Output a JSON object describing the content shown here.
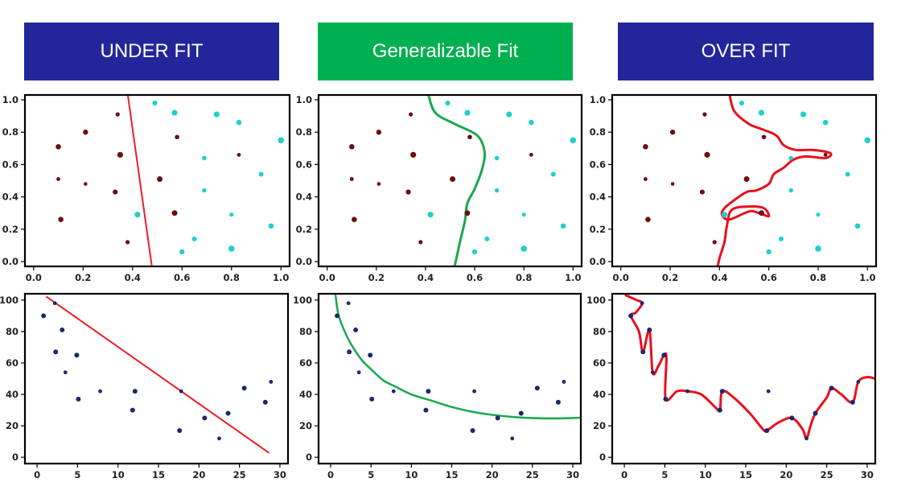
{
  "headers": {
    "left": {
      "label": "UNDER FIT",
      "color": "#22269a"
    },
    "middle": {
      "label": "Generalizable Fit",
      "color": "#00b050"
    },
    "right": {
      "label": "OVER FIT",
      "color": "#22269a"
    }
  },
  "colors": {
    "class_a": "#6b0f0f",
    "class_b": "#1fd0cc",
    "regression_points": "#1a2a6c",
    "underfit_line": "#ee1c25",
    "good_fit_line": "#1aa84e",
    "overfit_line": "#e8101d"
  },
  "chart_data": [
    {
      "type": "scatter",
      "panel": "classification-underfit",
      "xlim": [
        0,
        1
      ],
      "ylim": [
        0,
        1
      ],
      "xticks": [
        "0.0",
        "0.2",
        "0.4",
        "0.6",
        "0.8",
        "1.0"
      ],
      "yticks": [
        "0.0",
        "0.2",
        "0.4",
        "0.6",
        "0.8",
        "1.0"
      ],
      "series": [
        {
          "class": "a",
          "points": [
            [
              0.1,
              0.71
            ],
            [
              0.1,
              0.51
            ],
            [
              0.11,
              0.26
            ],
            [
              0.21,
              0.8
            ],
            [
              0.21,
              0.48
            ],
            [
              0.34,
              0.91
            ],
            [
              0.35,
              0.66
            ],
            [
              0.33,
              0.43
            ],
            [
              0.38,
              0.12
            ],
            [
              0.51,
              0.51
            ],
            [
              0.58,
              0.77
            ],
            [
              0.57,
              0.3
            ],
            [
              0.83,
              0.66
            ]
          ]
        },
        {
          "class": "b",
          "points": [
            [
              0.49,
              0.98
            ],
            [
              0.57,
              0.92
            ],
            [
              0.74,
              0.91
            ],
            [
              0.83,
              0.86
            ],
            [
              1.0,
              0.75
            ],
            [
              0.69,
              0.64
            ],
            [
              0.92,
              0.54
            ],
            [
              0.69,
              0.44
            ],
            [
              0.42,
              0.29
            ],
            [
              0.8,
              0.29
            ],
            [
              0.96,
              0.22
            ],
            [
              0.65,
              0.14
            ],
            [
              0.6,
              0.06
            ],
            [
              0.8,
              0.08
            ]
          ]
        }
      ],
      "boundary": [
        [
          0.38,
          1.04
        ],
        [
          0.48,
          -0.05
        ]
      ]
    },
    {
      "type": "scatter",
      "panel": "classification-generalizable",
      "xlim": [
        0,
        1
      ],
      "ylim": [
        0,
        1
      ],
      "xticks": [
        "0.0",
        "0.2",
        "0.4",
        "0.6",
        "0.8",
        "1.0"
      ],
      "yticks": [
        "0.0",
        "0.2",
        "0.4",
        "0.6",
        "0.8",
        "1.0"
      ],
      "series": [
        {
          "class": "a",
          "points": [
            [
              0.1,
              0.71
            ],
            [
              0.1,
              0.51
            ],
            [
              0.11,
              0.26
            ],
            [
              0.21,
              0.8
            ],
            [
              0.21,
              0.48
            ],
            [
              0.34,
              0.91
            ],
            [
              0.35,
              0.66
            ],
            [
              0.33,
              0.43
            ],
            [
              0.38,
              0.12
            ],
            [
              0.51,
              0.51
            ],
            [
              0.58,
              0.77
            ],
            [
              0.57,
              0.3
            ],
            [
              0.83,
              0.66
            ]
          ]
        },
        {
          "class": "b",
          "points": [
            [
              0.49,
              0.98
            ],
            [
              0.57,
              0.92
            ],
            [
              0.74,
              0.91
            ],
            [
              0.83,
              0.86
            ],
            [
              1.0,
              0.75
            ],
            [
              0.69,
              0.64
            ],
            [
              0.92,
              0.54
            ],
            [
              0.69,
              0.44
            ],
            [
              0.42,
              0.29
            ],
            [
              0.8,
              0.29
            ],
            [
              0.96,
              0.22
            ],
            [
              0.65,
              0.14
            ],
            [
              0.6,
              0.06
            ],
            [
              0.8,
              0.08
            ]
          ]
        }
      ],
      "boundary": [
        [
          0.41,
          1.04
        ],
        [
          0.44,
          0.92
        ],
        [
          0.52,
          0.85
        ],
        [
          0.61,
          0.78
        ],
        [
          0.64,
          0.68
        ],
        [
          0.63,
          0.57
        ],
        [
          0.6,
          0.45
        ],
        [
          0.57,
          0.36
        ],
        [
          0.56,
          0.25
        ],
        [
          0.54,
          0.12
        ],
        [
          0.52,
          -0.02
        ]
      ]
    },
    {
      "type": "scatter",
      "panel": "classification-overfit",
      "xlim": [
        0,
        1
      ],
      "ylim": [
        0,
        1
      ],
      "xticks": [
        "0.0",
        "0.2",
        "0.4",
        "0.6",
        "0.8",
        "1.0"
      ],
      "yticks": [
        "0.0",
        "0.2",
        "0.4",
        "0.6",
        "0.8",
        "1.0"
      ],
      "series": [
        {
          "class": "a",
          "points": [
            [
              0.1,
              0.71
            ],
            [
              0.1,
              0.51
            ],
            [
              0.11,
              0.26
            ],
            [
              0.21,
              0.8
            ],
            [
              0.21,
              0.48
            ],
            [
              0.34,
              0.91
            ],
            [
              0.35,
              0.66
            ],
            [
              0.33,
              0.43
            ],
            [
              0.38,
              0.12
            ],
            [
              0.51,
              0.51
            ],
            [
              0.58,
              0.77
            ],
            [
              0.57,
              0.3
            ],
            [
              0.83,
              0.66
            ]
          ]
        },
        {
          "class": "b",
          "points": [
            [
              0.49,
              0.98
            ],
            [
              0.57,
              0.92
            ],
            [
              0.74,
              0.91
            ],
            [
              0.83,
              0.86
            ],
            [
              1.0,
              0.75
            ],
            [
              0.69,
              0.64
            ],
            [
              0.92,
              0.54
            ],
            [
              0.69,
              0.44
            ],
            [
              0.42,
              0.29
            ],
            [
              0.8,
              0.29
            ],
            [
              0.96,
              0.22
            ],
            [
              0.65,
              0.14
            ],
            [
              0.6,
              0.06
            ],
            [
              0.8,
              0.08
            ]
          ]
        }
      ],
      "boundary": [
        [
          0.44,
          1.04
        ],
        [
          0.46,
          0.93
        ],
        [
          0.52,
          0.85
        ],
        [
          0.57,
          0.82
        ],
        [
          0.63,
          0.78
        ],
        [
          0.66,
          0.72
        ],
        [
          0.71,
          0.69
        ],
        [
          0.78,
          0.69
        ],
        [
          0.85,
          0.67
        ],
        [
          0.83,
          0.64
        ],
        [
          0.75,
          0.65
        ],
        [
          0.7,
          0.63
        ],
        [
          0.66,
          0.58
        ],
        [
          0.62,
          0.54
        ],
        [
          0.6,
          0.48
        ],
        [
          0.55,
          0.44
        ],
        [
          0.51,
          0.43
        ],
        [
          0.46,
          0.38
        ],
        [
          0.42,
          0.33
        ],
        [
          0.41,
          0.29
        ],
        [
          0.44,
          0.26
        ],
        [
          0.52,
          0.31
        ],
        [
          0.56,
          0.3
        ],
        [
          0.6,
          0.28
        ],
        [
          0.58,
          0.33
        ],
        [
          0.52,
          0.34
        ],
        [
          0.45,
          0.32
        ],
        [
          0.43,
          0.22
        ],
        [
          0.42,
          0.12
        ],
        [
          0.4,
          0.02
        ],
        [
          0.39,
          -0.05
        ]
      ]
    },
    {
      "type": "scatter",
      "panel": "regression-underfit",
      "xlim": [
        -1.5,
        31
      ],
      "ylim": [
        -4,
        104
      ],
      "xticks": [
        0,
        5,
        10,
        15,
        20,
        25,
        30
      ],
      "yticks": [
        0,
        20,
        40,
        60,
        80,
        100
      ],
      "points": [
        [
          0.8,
          90
        ],
        [
          2.2,
          98
        ],
        [
          2.3,
          67
        ],
        [
          3.1,
          81
        ],
        [
          3.5,
          54
        ],
        [
          4.9,
          65
        ],
        [
          5.1,
          37
        ],
        [
          7.8,
          42
        ],
        [
          12.1,
          42
        ],
        [
          11.8,
          30
        ],
        [
          17.8,
          42
        ],
        [
          17.6,
          17
        ],
        [
          20.7,
          25
        ],
        [
          22.5,
          12
        ],
        [
          23.6,
          28
        ],
        [
          25.6,
          44
        ],
        [
          28.9,
          48
        ],
        [
          28.2,
          35
        ]
      ],
      "fit": [
        [
          1.2,
          102
        ],
        [
          28.6,
          3
        ]
      ]
    },
    {
      "type": "scatter",
      "panel": "regression-generalizable",
      "xlim": [
        -1.5,
        31
      ],
      "ylim": [
        -4,
        104
      ],
      "xticks": [
        0,
        5,
        10,
        15,
        20,
        25,
        30
      ],
      "yticks": [
        0,
        20,
        40,
        60,
        80,
        100
      ],
      "points": [
        [
          0.8,
          90
        ],
        [
          2.2,
          98
        ],
        [
          2.3,
          67
        ],
        [
          3.1,
          81
        ],
        [
          3.5,
          54
        ],
        [
          4.9,
          65
        ],
        [
          5.1,
          37
        ],
        [
          7.8,
          42
        ],
        [
          12.1,
          42
        ],
        [
          11.8,
          30
        ],
        [
          17.8,
          42
        ],
        [
          17.6,
          17
        ],
        [
          20.7,
          25
        ],
        [
          22.5,
          12
        ],
        [
          23.6,
          28
        ],
        [
          25.6,
          44
        ],
        [
          28.9,
          48
        ],
        [
          28.2,
          35
        ]
      ],
      "fit": [
        [
          0.6,
          103
        ],
        [
          1.0,
          90
        ],
        [
          2.0,
          77
        ],
        [
          3.0,
          68
        ],
        [
          4.0,
          61
        ],
        [
          5.0,
          56
        ],
        [
          6.5,
          49
        ],
        [
          8.0,
          45
        ],
        [
          10.0,
          40
        ],
        [
          12.5,
          36
        ],
        [
          15.0,
          32
        ],
        [
          17.5,
          29
        ],
        [
          20.0,
          27
        ],
        [
          23.0,
          25.5
        ],
        [
          26.0,
          24.8
        ],
        [
          29.0,
          24.8
        ],
        [
          31.0,
          25.2
        ]
      ]
    },
    {
      "type": "scatter",
      "panel": "regression-overfit",
      "xlim": [
        -1.5,
        31
      ],
      "ylim": [
        -4,
        104
      ],
      "xticks": [
        0,
        5,
        10,
        15,
        20,
        25,
        30
      ],
      "yticks": [
        0,
        20,
        40,
        60,
        80,
        100
      ],
      "points": [
        [
          0.8,
          90
        ],
        [
          2.2,
          98
        ],
        [
          2.3,
          67
        ],
        [
          3.1,
          81
        ],
        [
          3.5,
          54
        ],
        [
          4.9,
          65
        ],
        [
          5.1,
          37
        ],
        [
          7.8,
          42
        ],
        [
          12.1,
          42
        ],
        [
          11.8,
          30
        ],
        [
          17.8,
          42
        ],
        [
          17.6,
          17
        ],
        [
          20.7,
          25
        ],
        [
          22.5,
          12
        ],
        [
          23.6,
          28
        ],
        [
          25.6,
          44
        ],
        [
          28.9,
          48
        ],
        [
          28.2,
          35
        ]
      ],
      "fit": [
        [
          0.2,
          103
        ],
        [
          1.5,
          100
        ],
        [
          2.2,
          98
        ],
        [
          1.4,
          92
        ],
        [
          0.8,
          90
        ],
        [
          1.8,
          80
        ],
        [
          2.3,
          67
        ],
        [
          3.1,
          81
        ],
        [
          3.5,
          54
        ],
        [
          4.2,
          58
        ],
        [
          4.9,
          65
        ],
        [
          5.2,
          63
        ],
        [
          5.1,
          37
        ],
        [
          6.5,
          42
        ],
        [
          7.8,
          42
        ],
        [
          9.5,
          40
        ],
        [
          11.2,
          32
        ],
        [
          11.8,
          30
        ],
        [
          12.1,
          42
        ],
        [
          13.5,
          38
        ],
        [
          15.5,
          28
        ],
        [
          17.1,
          18
        ],
        [
          17.6,
          17
        ],
        [
          19.0,
          22
        ],
        [
          20.7,
          25
        ],
        [
          22.0,
          18
        ],
        [
          22.5,
          12
        ],
        [
          23.0,
          20
        ],
        [
          23.6,
          28
        ],
        [
          25.0,
          38
        ],
        [
          25.6,
          44
        ],
        [
          26.8,
          40
        ],
        [
          28.2,
          35
        ],
        [
          28.9,
          48
        ],
        [
          30.0,
          51
        ],
        [
          31.0,
          50
        ]
      ]
    }
  ]
}
